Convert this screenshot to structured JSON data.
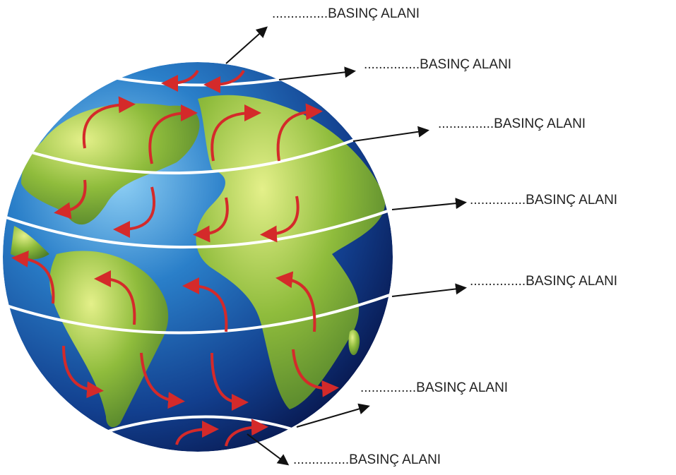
{
  "labels": [
    "...............BASINÇ ALANI",
    "...............BASINÇ ALANI",
    "...............BASINÇ ALANI",
    "...............BASINÇ ALANI",
    "...............BASINÇ ALANI",
    "...............BASINÇ ALANI",
    "...............BASINÇ ALANI"
  ]
}
